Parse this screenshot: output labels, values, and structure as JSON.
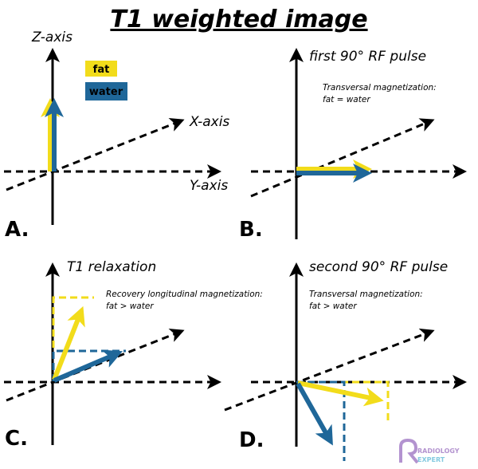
{
  "title": "T1 weighted image",
  "colors": {
    "fat": "#f2dc1b",
    "water": "#1f6799",
    "axis": "#000000"
  },
  "legend": {
    "fat": "fat",
    "water": "water"
  },
  "panel_a": {
    "label": "A.",
    "z_axis": "Z-axis",
    "x_axis": "X-axis",
    "y_axis": "Y-axis"
  },
  "panel_b": {
    "label": "B.",
    "title": "first 90° RF pulse",
    "note_line1": "Transversal magnetization:",
    "note_line2": "fat = water"
  },
  "panel_c": {
    "label": "C.",
    "title": "T1 relaxation",
    "note_line1": "Recovery longitudinal magnetization:",
    "note_line2": "fat > water"
  },
  "panel_d": {
    "label": "D.",
    "title": "second 90° RF pulse",
    "note_line1": "Transversal magnetization:",
    "note_line2": "fat > water"
  },
  "logo": {
    "line1": "RADIOLOGY",
    "line2": "EXPERT"
  }
}
